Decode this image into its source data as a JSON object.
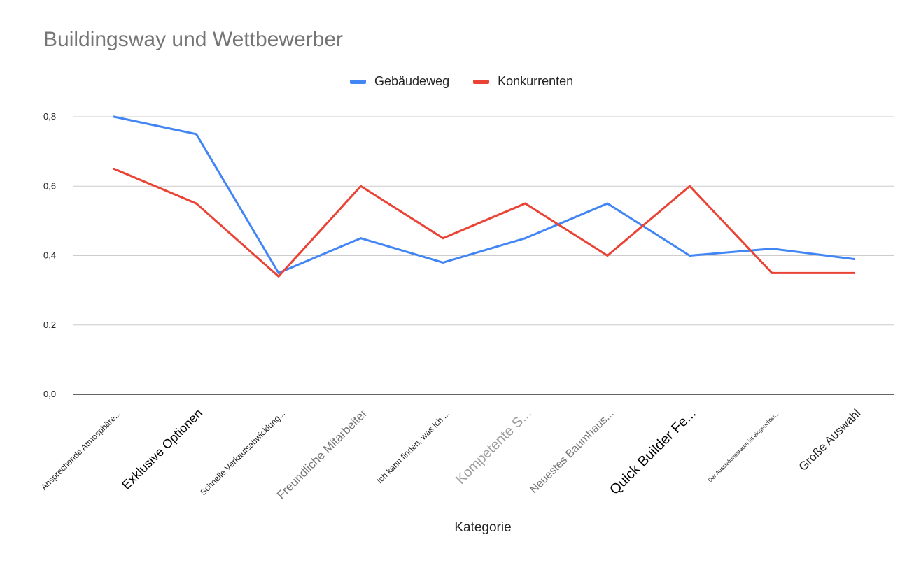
{
  "chart_data": {
    "type": "line",
    "title": "Buildingsway und Wettbewerber",
    "xlabel": "Kategorie",
    "ylabel": "",
    "ylim": [
      0,
      0.8
    ],
    "yticks": [
      "0,0",
      "0,2",
      "0,4",
      "0,6",
      "0,8"
    ],
    "ytick_values": [
      0,
      0.2,
      0.4,
      0.6,
      0.8
    ],
    "grid": true,
    "legend_position": "top",
    "categories": [
      "Ansprechende Atmosphäre...",
      "Exklusive Optionen",
      "Schnelle Verkaufsabwicklung...",
      "Freundliche Mitarbeiter",
      "Ich kann finden, was ich ...",
      "Kompetente S...",
      "Neuestes Baumhaus...",
      "Quick Builder Fe...",
      "Der Ausstellungsraum ist eingerichtet...",
      "Große Auswahl"
    ],
    "category_styles": [
      {
        "size": 12,
        "color": "#222222"
      },
      {
        "size": 18,
        "color": "#000000"
      },
      {
        "size": 12,
        "color": "#222222"
      },
      {
        "size": 17,
        "color": "#757575"
      },
      {
        "size": 12,
        "color": "#222222"
      },
      {
        "size": 20,
        "color": "#9e9e9e"
      },
      {
        "size": 16,
        "color": "#757575"
      },
      {
        "size": 20,
        "color": "#000000"
      },
      {
        "size": 8,
        "color": "#222222"
      },
      {
        "size": 17,
        "color": "#222222"
      }
    ],
    "series": [
      {
        "name": "Gebäudeweg",
        "color": "#4285f4",
        "values": [
          0.8,
          0.75,
          0.35,
          0.45,
          0.38,
          0.45,
          0.55,
          0.4,
          0.42,
          0.39
        ]
      },
      {
        "name": "Konkurrenten",
        "color": "#ea4335",
        "values": [
          0.65,
          0.55,
          0.34,
          0.6,
          0.45,
          0.55,
          0.4,
          0.6,
          0.35,
          0.35
        ]
      }
    ]
  }
}
